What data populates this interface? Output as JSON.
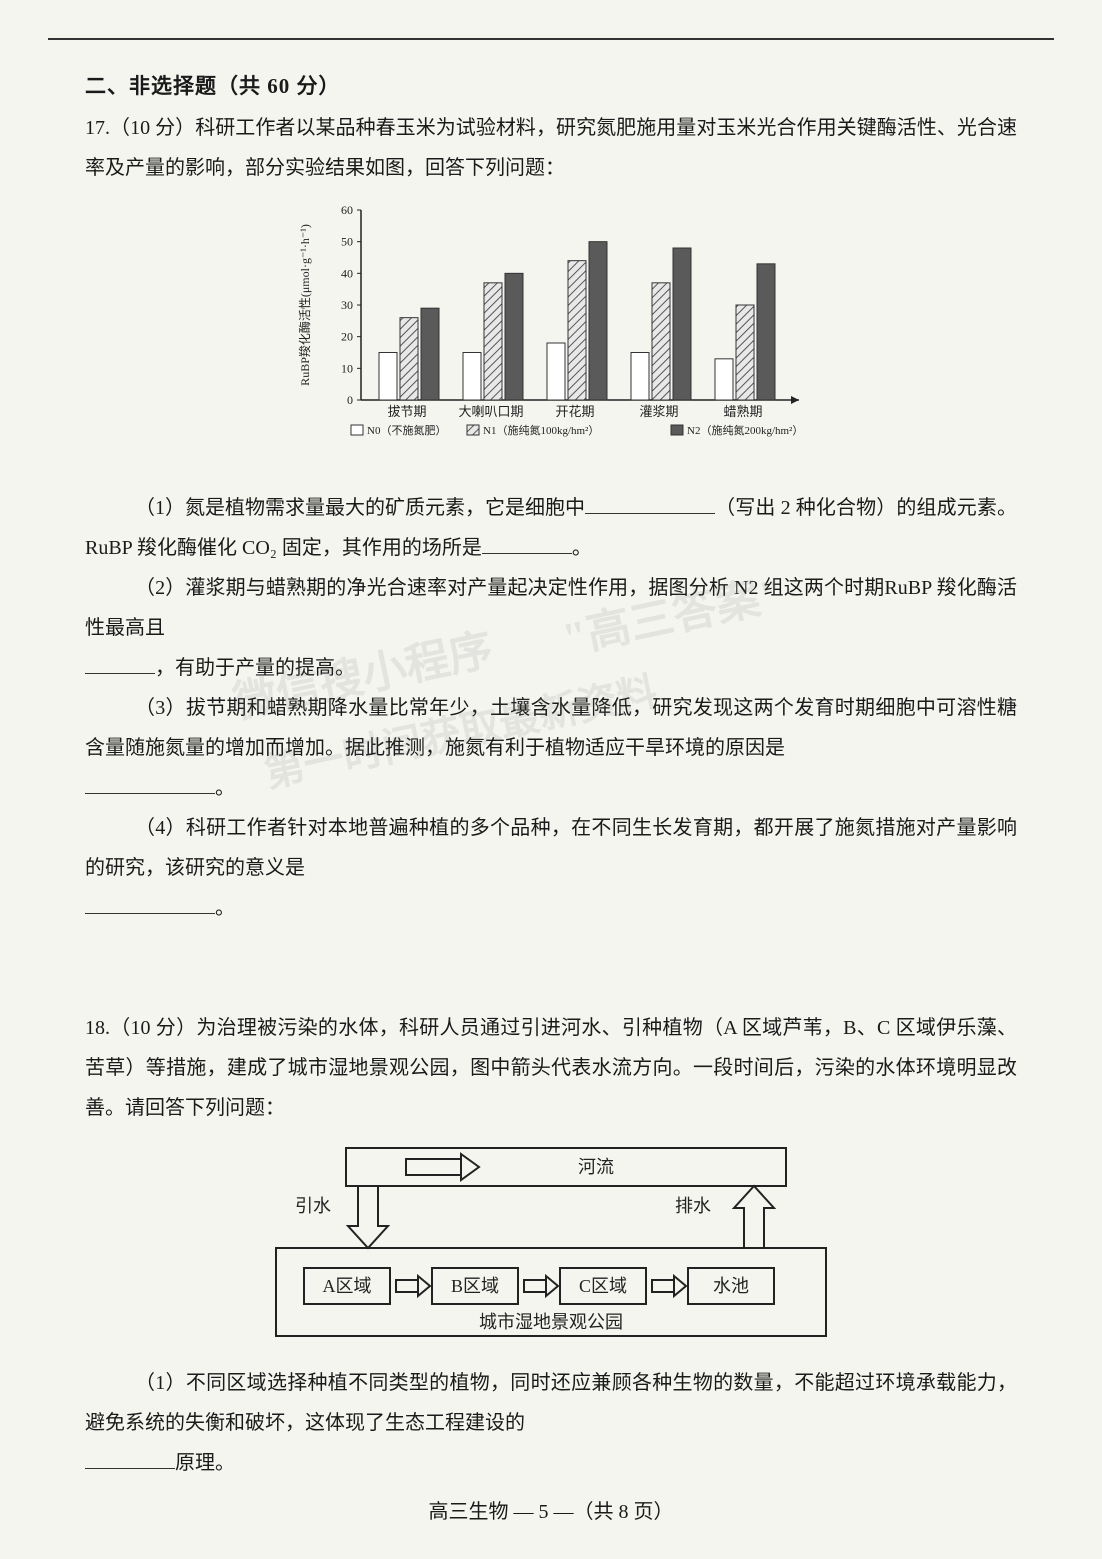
{
  "section_header": "二、非选择题（共 60 分）",
  "q17": {
    "intro": "17.（10 分）科研工作者以某品种春玉米为试验材料，研究氮肥施用量对玉米光合作用关键酶活性、光合速率及产量的影响，部分实验结果如图，回答下列问题：",
    "sub1a": "（1）氮是植物需求量最大的矿质元素，它是细胞中",
    "sub1b": "（写出 2 种化合物）的组成元素。RuBP 羧化酶催化 CO₂ 固定，其作用的场所是",
    "sub1c": "。",
    "sub2a": "（2）灌浆期与蜡熟期的净光合速率对产量起决定性作用，据图分析 N2 组这两个时期RuBP 羧化酶活性最高且",
    "sub2b": "，有助于产量的提高。",
    "sub3a": "（3）拔节期和蜡熟期降水量比常年少，土壤含水量降低，研究发现这两个发育时期细胞中可溶性糖含量随施氮量的增加而增加。据此推测，施氮有利于植物适应干旱环境的原因是",
    "sub3b": "。",
    "sub4a": "（4）科研工作者针对本地普遍种植的多个品种，在不同生长发育期，都开展了施氮措施对产量影响的研究，该研究的意义是",
    "sub4b": "。"
  },
  "q18": {
    "intro": "18.（10 分）为治理被污染的水体，科研人员通过引进河水、引种植物（A 区域芦苇，B、C 区域伊乐藻、苦草）等措施，建成了城市湿地景观公园，图中箭头代表水流方向。一段时间后，污染的水体环境明显改善。请回答下列问题：",
    "sub1a": "（1）不同区域选择种植不同类型的植物，同时还应兼顾各种生物的数量，不能超过环境承载能力，避免系统的失衡和破坏，这体现了生态工程建设的",
    "sub1b": "原理。"
  },
  "chart": {
    "type": "bar",
    "ylabel": "RuBP羧化酶活性(μmol·g⁻¹·h⁻¹)",
    "ylim": [
      0,
      60
    ],
    "ytick_step": 10,
    "categories": [
      "拔节期",
      "大喇叭口期",
      "开花期",
      "灌浆期",
      "蜡熟期"
    ],
    "series": [
      {
        "name": "N0",
        "label": "N0（不施氮肥）",
        "fill": "#ffffff",
        "pattern": "none",
        "values": [
          15,
          15,
          18,
          15,
          13
        ]
      },
      {
        "name": "N1",
        "label": "N1（施纯氮100kg/hm²）",
        "fill": "#b8b8b8",
        "pattern": "hatch",
        "values": [
          26,
          37,
          44,
          37,
          30
        ]
      },
      {
        "name": "N2",
        "label": "N2（施纯氮200kg/hm²）",
        "fill": "#5a5a5a",
        "pattern": "solid",
        "values": [
          29,
          40,
          50,
          48,
          43
        ]
      }
    ],
    "font_size": 12,
    "axis_color": "#222222",
    "bg_color": "#f5f5f0"
  },
  "diagram": {
    "river_label": "河流",
    "inflow_label": "引水",
    "outflow_label": "排水",
    "boxes": [
      "A区域",
      "B区域",
      "C区域",
      "水池"
    ],
    "caption": "城市湿地景观公园",
    "border_color": "#222222",
    "font_size": 18
  },
  "watermarks": {
    "w1": "微信搜小程序",
    "w2": "\"高三答案\"",
    "w3": "第一时间获取最新资料"
  },
  "footer": {
    "text": "高三生物 — 5 —（共 8 页）"
  }
}
